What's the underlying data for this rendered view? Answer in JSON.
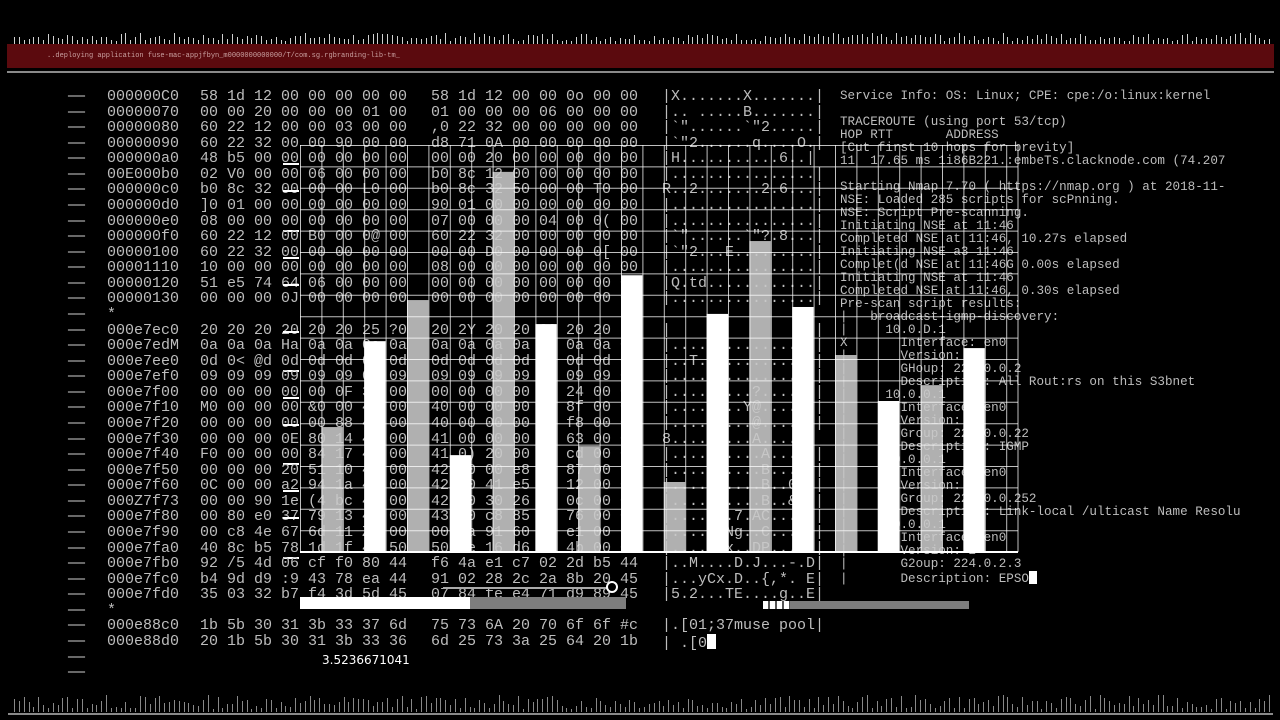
{
  "banner": {
    "text": "..deploying application fuse-mac-appjfbyn_m0000000000000/T/com.sg.rgbranding-lib-tm_"
  },
  "hexdump": {
    "dash": "——",
    "rows": [
      {
        "addr": "000000C0",
        "hex1": "58 1d 12 00 00 00 00 00",
        "hex2": "58 1d 12 00 00 0o 00 00",
        "ascii": "|X.......X.......|"
      },
      {
        "addr": "00000070",
        "hex1": "00 00 20 00 00 00 01 00",
        "hex2": "01 00 00 00 06 00 00 00",
        "ascii": "|.. .....B.......|"
      },
      {
        "addr": "00000080",
        "hex1": "60 22 12 00 00 03 00 00",
        "hex2": ",0 22 32 00 00 00 00 00",
        "ascii": "|`\"......`\"2.....|"
      },
      {
        "addr": "00000090",
        "hex1": "60 22 32 00 00 90 00 00",
        "hex2": "d8 71 0A 00 00 00 00 00",
        "ascii": "|`\"2......q....O.|"
      },
      {
        "addr": "000000a0",
        "hex1": "48 b5 00 00 00 00 00 00",
        "hex2": "00 00 20 00 00 00 00 00",
        "ascii": "|H...........6..|"
      },
      {
        "addr": "00E000b0",
        "hex1": "02 V0 00 00 06 00 00 00",
        "hex2": "b0 8c 12 00 00 00 00 00",
        "ascii": "|................|"
      },
      {
        "addr": "000000c0",
        "hex1": "b0 8c 32 00 00 00 L0 00",
        "hex2": "b0 8c 32 50 00 00 T0 00",
        "ascii": "R..2.......2.6...|"
      },
      {
        "addr": "000000d0",
        "hex1": "]0 01 00 00 00 00 00 00",
        "hex2": "90 01 00 00 00 00 00 00",
        "ascii": "|................|"
      },
      {
        "addr": "000000e0",
        "hex1": "08 00 00 00 00 00 00 00",
        "hex2": "07 00 00 00 04 00 0( 00",
        "ascii": "|................|"
      },
      {
        "addr": "000000f0",
        "hex1": "60 22 12 00 B0 00 0@ 00",
        "hex2": "60 22 32 00 00 00 00 00",
        "ascii": "|`\"......`\"?.8...|"
      },
      {
        "addr": "00000100",
        "hex1": "60 22 32 00 00 00 00 00",
        "hex2": "00 00 D0 00 00 00 0[ 00",
        "ascii": "|`\"2...E.........|"
      },
      {
        "addr": "00001110",
        "hex1": "10 00 00 00 00 00 00 00",
        "hex2": "08 00 00 00 00 00 00 00",
        "ascii": "|................|"
      },
      {
        "addr": "00000120",
        "hex1": "51 e5 74 64 06 00 00 00",
        "hex2": "00 00 00 00 00 00 00 00",
        "ascii": "|Q.td............|"
      },
      {
        "addr": "00000130",
        "hex1": "00 00 00 0J 00 00 00 00",
        "hex2": "00 00 00 00 00 00 00 00",
        "ascii": "|................|"
      },
      {
        "addr": "*",
        "hex1": "",
        "hex2": "",
        "ascii": ""
      },
      {
        "addr": "000e7ec0",
        "hex1": "20 20 20 20 20 20 25 ?0",
        "hex2": "20 2Y 20 20 20 20 20 20",
        "ascii": "|                |"
      },
      {
        "addr": "000e7edM",
        "hex1": "0a 0a 0a Ha 0a 0a 0a 0a",
        "hex2": "0a 0a 0a 0a 0a 0a 0a 0a",
        "ascii": "|................|"
      },
      {
        "addr": "000e7ee0",
        "hex1": "0d 0< @d 0d 0d 0d 0d 0d",
        "hex2": "0d 0d 0d 0d 0d 0d 0d 0d",
        "ascii": "|..T.............|"
      },
      {
        "addr": "000e7ef0",
        "hex1": "09 09 09 09 09 09 09 09",
        "hex2": "09 09 09 09 09 09 09 09",
        "ascii": "|................|"
      },
      {
        "addr": "000e7f00",
        "hex1": "00 00 00 00 00 0F 3f 00",
        "hex2": "00 00 00 00 00 24 00 00",
        "ascii": "|.........?......|"
      },
      {
        "addr": "000e7f10",
        "hex1": "M0 00 00 00 &0 00 40 00",
        "hex2": "40 00 00 00 40 8f 00 00",
        "ascii": "|........Y@......|"
      },
      {
        "addr": "000e7f20",
        "hex1": "00 00 00 00 00 88 40 00",
        "hex2": "40 00 00 00 6a f8 00 00",
        "ascii": "|.........@......|"
      },
      {
        "addr": "000e7f30",
        "hex1": "00 00 00 0E 80 14 41 00",
        "hex2": "41 00 00 00 12 63 00 00",
        "ascii": "8.........A.....|"
      },
      {
        "addr": "000e7f40",
        "hex1": "F0 00 00 00 84 17 41 00",
        "hex2": "41 0) 20 00 c1 cd 00 00",
        "ascii": "|..........A...e.|"
      },
      {
        "addr": "000e7f50",
        "hex1": "00 00 00 20 51 10 42 00",
        "hex2": "42 00 00 e8 47 87 00 00",
        "ascii": "|..........B...v.|"
      },
      {
        "addr": "000e7f60",
        "hex1": "0C 00 00 a2 94 1a 42 00",
        "hex2": "42 00 41 e5 30 12 00 00",
        "ascii": "|..........B..0..|"
      },
      {
        "addr": "000Z7f73",
        "hex1": "00 00 90 1e (4 bc 42 00",
        "hex2": "42 00 30 26 62 0c 00 00",
        "ascii": "|..........B..&..|"
      },
      {
        "addr": "000e7f80",
        "hex1": "00 80 e0 37 79 13 43 00",
        "hex2": "43 00 c8 85 30 76 00 00",
        "ascii": "|.......7.AC...W.|"
      },
      {
        "addr": "000e7f90",
        "hex1": "00 c8 4e 67 6d 11 Z3 00",
        "hex2": "00 1a 91 60 58 e1 00 00",
        "ascii": "|......Ng..C.....|"
      },
      {
        "addr": "000e7fa0",
        "hex1": "40 8c b5 78 1d 1f 44 50",
        "hex2": "50 1e 16 d6 11 4b 00 00",
        "ascii": "|......x..DP.....|"
      },
      {
        "addr": "000e7fb0",
        "hex1": "92 /5 4d 06 cf f0 80 44",
        "hex2": "f6 4a e1 c7 02 2d b5 44",
        "ascii": "|..M....D.J...-.D|"
      },
      {
        "addr": "000e7fc0",
        "hex1": "b4 9d d9 :9 43 78 ea 44",
        "hex2": "91 02 28 2c 2a 8b 20 45",
        "ascii": "|...yCx.D..{,*. E|"
      },
      {
        "addr": "000e7fd0",
        "hex1": "35 03 32 b7 f4 3d 5d 45",
        "hex2": "07 84 fe e4 71 d9 89 45",
        "ascii": "|5.2...TE....g..E|"
      },
      {
        "addr": "*",
        "hex1": "",
        "hex2": "",
        "ascii": ""
      },
      {
        "addr": "000e88c0",
        "hex1": "1b 5b 30 31 3b 33 37 6d",
        "hex2": "75 73 6A 20 70 6f 6f #c",
        "ascii": "|.[01;37muse pool|"
      },
      {
        "addr": "000e88d0",
        "hex1": "20 1b 5b 30 31 3b 33 36",
        "hex2": "6d 25 73 3a 25 64 20 1b",
        "ascii": "| .[0"
      },
      {
        "addr": "",
        "hex1": "",
        "hex2": "",
        "ascii": ""
      },
      {
        "addr": "",
        "hex1": "",
        "hex2": "",
        "ascii": ""
      }
    ]
  },
  "info": {
    "lines": [
      "Service Info: OS: Linux; CPE: cpe:/o:linux:kernel",
      "",
      "TRACEROUTE (using port 53/tcp)",
      "HOP RTT       ADDRESS",
      "[Cut first 10 hops for brevity]",
      "11  17.65 ms 1i86B221.:embeTs.clacknode.com (74.207",
      "",
      "Starting Nmap 7.70 ( https://nmap.org ) at 2018-11-",
      "NSE: Loaded 285 scripts for scPnning.",
      "NSE: Script Pre-scanning.",
      "Initiating NSE at 11:46",
      "Completed NSE at 11:46, 10.27s elapsed",
      "Initiating NSE a3 11:46",
      "Complet(d NSE at 11:46G 0.00s elapsed",
      "Initiating NSE at 11:46",
      "Completed NSE at 11:46, 0.30s elapsed",
      "Pre-scan script results:",
      "|   broadcast-igmp-discovery:",
      "|     10.0.D.1",
      "X       Interface: en0",
      "|       Version: 2",
      "|       GHoup: 224.0.0.2",
      "|       Description: All Rout:rs on this S3bnet",
      "|     10.0.0.1",
      "|       Interface: en0",
      "|       Version: 2",
      "|       Group: 224.0.0.22",
      "|       Description: IGMP",
      "|     10.0.0.1",
      "|       Interface: en0",
      "|       Version: 2",
      "|       Group: 224.0.0.252",
      "|       Description: Link-local /ulticast Name Resolu",
      "|     10.0.0.1",
      "|       Interface: en0",
      "|       Version: 2",
      "|       G2oup: 224.0.2.3",
      "|       Description: EPSO"
    ]
  },
  "progress": {
    "label": "3.5236671041",
    "value": 0.52,
    "slider_value": 0.96
  },
  "progress2": {
    "value": 0.13
  },
  "chart_data": {
    "type": "bar",
    "values": [
      30.7,
      51.8,
      61.9,
      23.8,
      93.4,
      56.0,
      26.0,
      68.0,
      17.2,
      58.5,
      76.4,
      60.2,
      48.4,
      37.1,
      41.0,
      50.1
    ],
    "ylim": [
      0,
      100
    ],
    "grid": true,
    "bar_colors": [
      "#c8c8c8",
      "#ffffff"
    ]
  },
  "colors": {
    "banner": "#5b0a0e",
    "text": "#bdbdbd",
    "grid": "#ffffff"
  }
}
